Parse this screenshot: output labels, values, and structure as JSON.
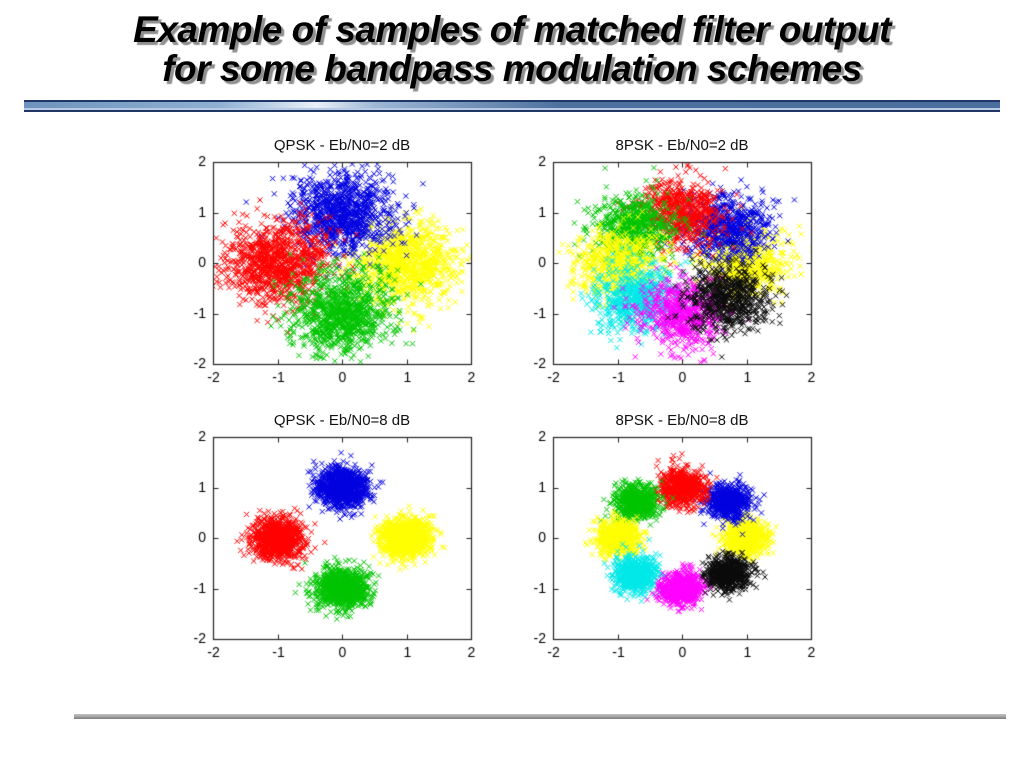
{
  "slide": {
    "title_line1": "Example of samples of matched filter output",
    "title_line2": "for some bandpass modulation schemes"
  },
  "colors": {
    "title_text": "#000000",
    "title_shadow": "#8f8f8f",
    "divider_navy": "#1f3767",
    "divider_blue": "#4d719f",
    "divider_pale": "#b9cbe3",
    "bottom_rule_gray": "#a9a9a9",
    "axis_line": "#222222"
  },
  "chart_data": [
    {
      "type": "scatter",
      "title": "QPSK - Eb/N0=2 dB",
      "marker": "x",
      "xlim": [
        -2,
        2
      ],
      "ylim": [
        -2,
        2
      ],
      "xticks": [
        -2,
        -1,
        0,
        1,
        2
      ],
      "yticks": [
        -2,
        -1,
        0,
        1,
        2
      ],
      "grid": false,
      "legend": "none",
      "noise_std": 0.4,
      "points_per_cluster": 1000,
      "clusters": [
        {
          "name": "symbol-0deg",
          "color": "#ffff00",
          "center": [
            1,
            0
          ]
        },
        {
          "name": "symbol-90deg",
          "color": "#0000e0",
          "center": [
            0,
            1
          ]
        },
        {
          "name": "symbol-180deg",
          "color": "#ff0000",
          "center": [
            -1,
            0
          ]
        },
        {
          "name": "symbol-270deg",
          "color": "#00c400",
          "center": [
            0,
            -1
          ]
        }
      ]
    },
    {
      "type": "scatter",
      "title": "8PSK - Eb/N0=2 dB",
      "marker": "x",
      "xlim": [
        -2,
        2
      ],
      "ylim": [
        -2,
        2
      ],
      "xticks": [
        -2,
        -1,
        0,
        1,
        2
      ],
      "yticks": [
        -2,
        -1,
        0,
        1,
        2
      ],
      "grid": false,
      "legend": "none",
      "noise_std": 0.33,
      "points_per_cluster": 650,
      "clusters": [
        {
          "name": "symbol-0deg",
          "color": "#ffff00",
          "center": [
            1,
            0
          ]
        },
        {
          "name": "symbol-45deg",
          "color": "#0000e0",
          "center": [
            0.71,
            0.71
          ]
        },
        {
          "name": "symbol-90deg",
          "color": "#ff0000",
          "center": [
            0,
            1
          ]
        },
        {
          "name": "symbol-135deg",
          "color": "#00c400",
          "center": [
            -0.71,
            0.71
          ]
        },
        {
          "name": "symbol-180deg",
          "color": "#ffff00",
          "center": [
            -1,
            0
          ]
        },
        {
          "name": "symbol-225deg",
          "color": "#00e8e8",
          "center": [
            -0.71,
            -0.71
          ]
        },
        {
          "name": "symbol-270deg",
          "color": "#ff00ff",
          "center": [
            0,
            -1
          ]
        },
        {
          "name": "symbol-315deg",
          "color": "#0a0a0a",
          "center": [
            0.71,
            -0.71
          ]
        }
      ]
    },
    {
      "type": "scatter",
      "title": "QPSK - Eb/N0=8 dB",
      "marker": "x",
      "xlim": [
        -2,
        2
      ],
      "ylim": [
        -2,
        2
      ],
      "xticks": [
        -2,
        -1,
        0,
        1,
        2
      ],
      "yticks": [
        -2,
        -1,
        0,
        1,
        2
      ],
      "grid": false,
      "legend": "none",
      "noise_std": 0.2,
      "points_per_cluster": 1000,
      "clusters": [
        {
          "name": "symbol-0deg",
          "color": "#ffff00",
          "center": [
            1,
            0
          ]
        },
        {
          "name": "symbol-90deg",
          "color": "#0000e0",
          "center": [
            0,
            1
          ]
        },
        {
          "name": "symbol-180deg",
          "color": "#ff0000",
          "center": [
            -1,
            0
          ]
        },
        {
          "name": "symbol-270deg",
          "color": "#00c400",
          "center": [
            0,
            -1
          ]
        }
      ]
    },
    {
      "type": "scatter",
      "title": "8PSK - Eb/N0=8 dB",
      "marker": "x",
      "xlim": [
        -2,
        2
      ],
      "ylim": [
        -2,
        2
      ],
      "xticks": [
        -2,
        -1,
        0,
        1,
        2
      ],
      "yticks": [
        -2,
        -1,
        0,
        1,
        2
      ],
      "grid": false,
      "legend": "none",
      "noise_std": 0.17,
      "points_per_cluster": 650,
      "clusters": [
        {
          "name": "symbol-0deg",
          "color": "#ffff00",
          "center": [
            1,
            0
          ]
        },
        {
          "name": "symbol-45deg",
          "color": "#0000e0",
          "center": [
            0.71,
            0.71
          ]
        },
        {
          "name": "symbol-90deg",
          "color": "#ff0000",
          "center": [
            0,
            1
          ]
        },
        {
          "name": "symbol-135deg",
          "color": "#00c400",
          "center": [
            -0.71,
            0.71
          ]
        },
        {
          "name": "symbol-180deg",
          "color": "#ffff00",
          "center": [
            -1,
            0
          ]
        },
        {
          "name": "symbol-225deg",
          "color": "#00e8e8",
          "center": [
            -0.71,
            -0.71
          ]
        },
        {
          "name": "symbol-270deg",
          "color": "#ff00ff",
          "center": [
            0,
            -1
          ]
        },
        {
          "name": "symbol-315deg",
          "color": "#0a0a0a",
          "center": [
            0.71,
            -0.71
          ]
        }
      ]
    }
  ]
}
